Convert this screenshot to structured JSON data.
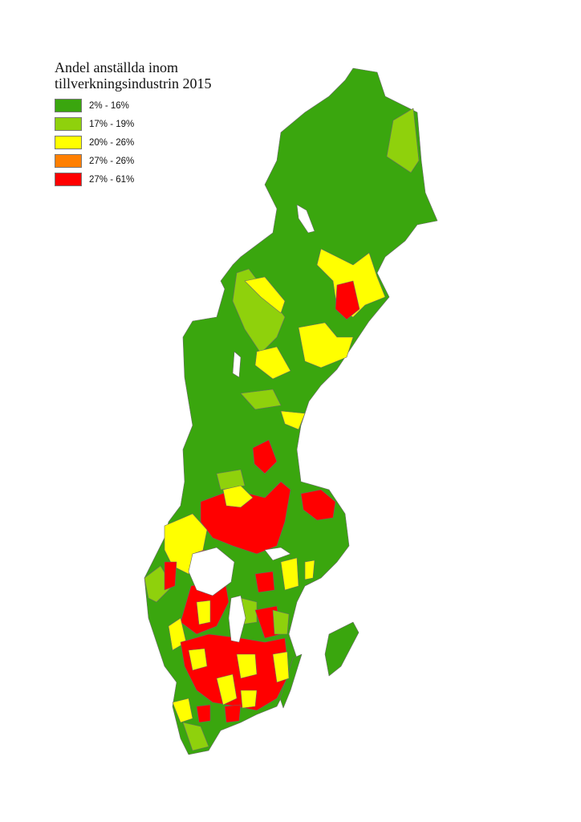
{
  "legend": {
    "title_line1": "Andel anställda inom",
    "title_line2": "tillverkningsindustrin 2015",
    "items": [
      {
        "label": "2% - 16%",
        "color": "#3aa60e"
      },
      {
        "label": "17% - 19%",
        "color": "#8fd10c"
      },
      {
        "label": "20% - 26%",
        "color": "#ffff00"
      },
      {
        "label": "27% - 26%",
        "color": "#ff7f00"
      },
      {
        "label": "27% - 61%",
        "color": "#ff0000"
      }
    ]
  },
  "map": {
    "region": "Sweden municipalities",
    "base_color": "#3aa60e",
    "border_color": "#6b6b6b",
    "water_color": "#ffffff"
  }
}
